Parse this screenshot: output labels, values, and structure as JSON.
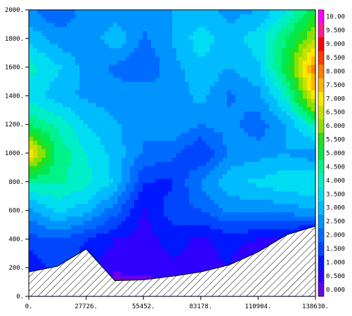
{
  "chart_data": {
    "type": "heatmap",
    "title": "",
    "xlabel": "",
    "ylabel": "",
    "xlim": [
      0,
      138630
    ],
    "ylim": [
      0,
      2000
    ],
    "x_ticks": [
      "0.",
      "27726.",
      "55452.",
      "83178.",
      "110904.",
      "138630."
    ],
    "y_ticks": [
      "0.",
      "200.",
      "400.",
      "600.",
      "800.",
      "1000.",
      "1200.",
      "1400.",
      "1600.",
      "1800.",
      "2000."
    ],
    "colorbar": {
      "labels": [
        "0.000",
        "0.500",
        "1.000",
        "1.500",
        "2.000",
        "2.500",
        "3.000",
        "3.500",
        "4.000",
        "4.500",
        "5.000",
        "5.500",
        "6.000",
        "6.500",
        "7.000",
        "7.500",
        "8.000",
        "8.500",
        "9.000",
        "9.500",
        "10.00"
      ],
      "colors": [
        "#6a00e8",
        "#3000ff",
        "#0018ff",
        "#0046ff",
        "#006cff",
        "#0094ff",
        "#00bcff",
        "#00dcf2",
        "#00eec8",
        "#00f28a",
        "#00e84c",
        "#20e020",
        "#8ee000",
        "#c8e000",
        "#ffe600",
        "#ffb400",
        "#ff7e00",
        "#ff3c00",
        "#ff0000",
        "#ff1e8c",
        "#ff00ff"
      ]
    },
    "x": [
      0,
      13863,
      27726,
      41589,
      55452,
      69315,
      83178,
      97041,
      110904,
      124767,
      138630
    ],
    "y": [
      0,
      200,
      400,
      600,
      800,
      1000,
      1200,
      1400,
      1600,
      1800,
      2000
    ],
    "z": [
      [
        0.0,
        0.0,
        0.0,
        0.0,
        0.0,
        0.0,
        0.0,
        0.0,
        0.0,
        0.0,
        0.0
      ],
      [
        1.0,
        1.8,
        1.2,
        0.6,
        0.7,
        0.9,
        0.8,
        1.0,
        0.0,
        0.0,
        0.0
      ],
      [
        1.8,
        2.0,
        1.5,
        1.0,
        0.8,
        1.2,
        0.9,
        1.2,
        1.0,
        0.9,
        0.0
      ],
      [
        2.8,
        3.6,
        3.2,
        2.2,
        0.9,
        1.8,
        2.0,
        2.6,
        2.6,
        2.7,
        3.0
      ],
      [
        4.6,
        4.6,
        4.2,
        3.4,
        1.5,
        1.4,
        2.6,
        3.4,
        3.6,
        3.9,
        4.0
      ],
      [
        7.6,
        4.9,
        4.0,
        3.3,
        2.4,
        2.2,
        1.4,
        2.6,
        2.8,
        3.0,
        2.6
      ],
      [
        5.0,
        4.4,
        3.5,
        3.1,
        2.6,
        2.9,
        2.5,
        2.7,
        2.2,
        3.0,
        4.6
      ],
      [
        3.8,
        3.2,
        2.9,
        2.7,
        2.9,
        2.6,
        3.2,
        2.4,
        2.8,
        4.2,
        7.6
      ],
      [
        4.2,
        3.6,
        2.8,
        2.4,
        2.0,
        2.8,
        3.4,
        3.0,
        3.4,
        5.4,
        8.4
      ],
      [
        3.4,
        2.8,
        2.5,
        3.4,
        2.4,
        3.0,
        3.8,
        3.2,
        3.8,
        5.0,
        6.6
      ],
      [
        2.6,
        2.0,
        2.8,
        2.6,
        2.8,
        3.0,
        3.2,
        2.8,
        3.0,
        4.0,
        5.4
      ]
    ],
    "terrain_height": [
      170,
      210,
      330,
      110,
      115,
      140,
      170,
      220,
      310,
      430,
      490
    ]
  }
}
